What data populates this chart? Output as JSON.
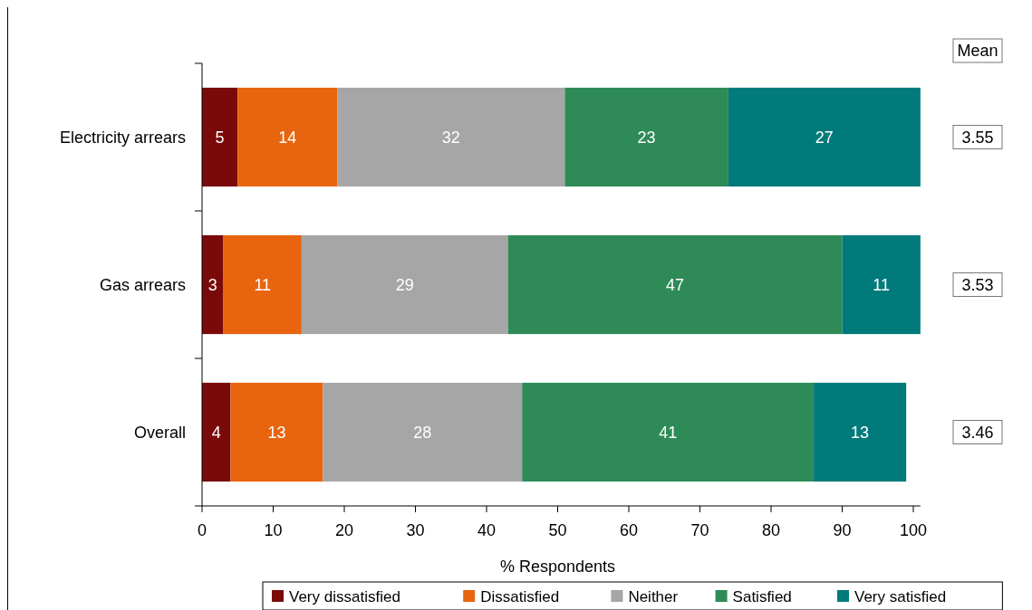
{
  "chart_data": {
    "type": "bar",
    "orientation": "horizontal",
    "stacked": true,
    "xlabel": "% Respondents",
    "categories": [
      "Electricity arrears",
      "Gas arrears",
      "Overall"
    ],
    "series": [
      {
        "name": "Very dissatisfied",
        "color": "#7a0a0a",
        "values": [
          5,
          3,
          4
        ]
      },
      {
        "name": "Dissatisfied",
        "color": "#e8640f",
        "values": [
          14,
          11,
          13
        ]
      },
      {
        "name": "Neither",
        "color": "#a6a6a6",
        "values": [
          32,
          29,
          28
        ]
      },
      {
        "name": "Satisfied",
        "color": "#2e8b57",
        "values": [
          23,
          47,
          41
        ]
      },
      {
        "name": "Very satisfied",
        "color": "#007a7a",
        "values": [
          27,
          11,
          13
        ]
      }
    ],
    "xlim": [
      0,
      101
    ],
    "xticks": [
      0,
      10,
      20,
      30,
      40,
      50,
      60,
      70,
      80,
      90,
      100
    ],
    "data_labels": true,
    "legend": "bottom",
    "grid": false,
    "annotations": [
      "Mean",
      "3.55",
      "3.53",
      "3.46"
    ]
  }
}
